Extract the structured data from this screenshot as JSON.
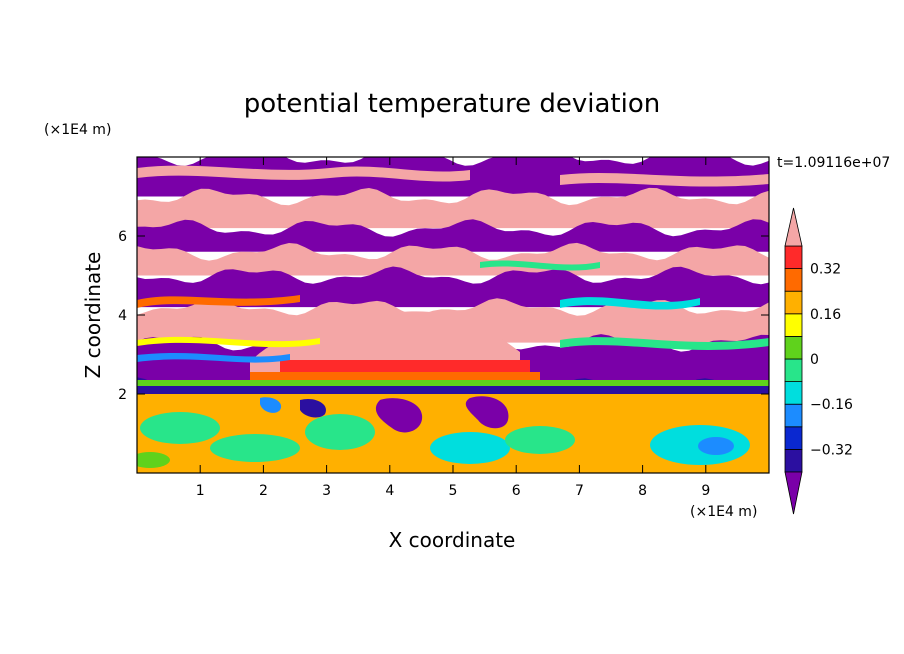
{
  "chart_data": {
    "type": "heatmap",
    "title": "potential temperature deviation",
    "time_label": "t=1.09116e+07",
    "xlabel": "X coordinate",
    "ylabel": "Z coordinate",
    "x_unit": "(×1E4 m)",
    "y_unit": "(×1E4 m)",
    "xlim": [
      0,
      10
    ],
    "ylim": [
      0,
      8
    ],
    "x_ticks": [
      1,
      2,
      3,
      4,
      5,
      6,
      7,
      8,
      9
    ],
    "y_ticks": [
      2,
      4,
      6
    ],
    "colorbar": {
      "levels": [
        -0.4,
        -0.32,
        -0.24,
        -0.16,
        -0.08,
        0,
        0.08,
        0.16,
        0.24,
        0.32,
        0.4
      ],
      "colors": [
        "#7a00a8",
        "#2b0fa0",
        "#0a28d0",
        "#1c8cff",
        "#00dede",
        "#28e58a",
        "#5fd21c",
        "#ffff00",
        "#ffb000",
        "#ff6a00",
        "#ff2a2a",
        "#f4a6a6"
      ],
      "tick_labels": [
        "0.32",
        "0.16",
        "0",
        "−0.16",
        "−0.32"
      ],
      "tick_values": [
        0.32,
        0.16,
        0,
        -0.16,
        -0.32
      ]
    },
    "layers": [
      {
        "z_from": 7.0,
        "z_to": 8.0,
        "value": -0.5
      },
      {
        "z_from": 6.2,
        "z_to": 7.0,
        "value": 0.5
      },
      {
        "z_from": 5.6,
        "z_to": 6.2,
        "value": -0.5
      },
      {
        "z_from": 5.0,
        "z_to": 5.6,
        "value": 0.5
      },
      {
        "z_from": 4.2,
        "z_to": 5.0,
        "value": -0.5
      },
      {
        "z_from": 3.3,
        "z_to": 4.2,
        "value": 0.5
      },
      {
        "z_from": 2.2,
        "z_to": 3.3,
        "value": -0.5
      },
      {
        "z_from": 2.0,
        "z_to": 2.2,
        "value": -0.4
      },
      {
        "z_from": 0.0,
        "z_to": 2.0,
        "value": 0.18
      }
    ]
  }
}
